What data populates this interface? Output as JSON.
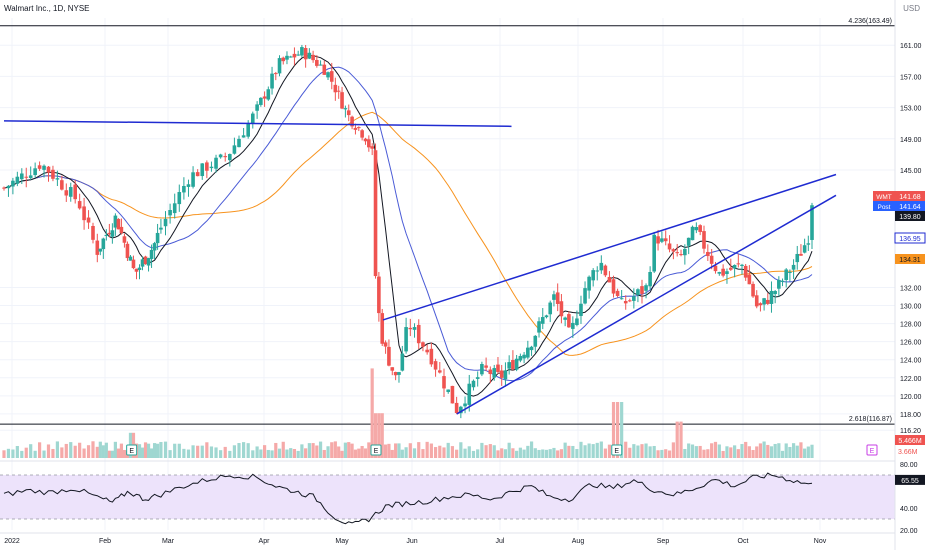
{
  "header": {
    "title": "Walmart Inc., 1D, NYSE",
    "currency": "USD"
  },
  "colors": {
    "up": "#26a69a",
    "down": "#ef5350",
    "trend": "#1f2bd1",
    "ma_fast": "#131722",
    "ma_mid": "#4a5bd6",
    "ma_slow": "#f7931e",
    "rsi_fill": "#ede3fb",
    "rsi_line": "#131722"
  },
  "chart_data": [
    {
      "type": "candlestick",
      "title": "Walmart Inc., 1D, NYSE",
      "price_axis": {
        "ticks": [
          161.0,
          157.0,
          153.0,
          149.0,
          145.0,
          132.0,
          130.0,
          128.0,
          126.0,
          124.0,
          122.0,
          120.0,
          118.0,
          116.2
        ],
        "range": [
          116,
          165
        ]
      },
      "time_axis": {
        "labels": [
          "2022",
          "Feb",
          "Mar",
          "Apr",
          "May",
          "Jun",
          "Jul",
          "Aug",
          "Sep",
          "Oct",
          "Nov"
        ]
      },
      "close_path": [
        {
          "m": 0.0,
          "c": 143.0
        },
        {
          "m": 0.4,
          "c": 145.8
        },
        {
          "m": 0.8,
          "c": 141.5
        },
        {
          "m": 1.0,
          "c": 136.0
        },
        {
          "m": 1.3,
          "c": 139.8
        },
        {
          "m": 1.6,
          "c": 133.5
        },
        {
          "m": 1.9,
          "c": 136.6
        },
        {
          "m": 2.3,
          "c": 144.2
        },
        {
          "m": 2.7,
          "c": 146.8
        },
        {
          "m": 3.0,
          "c": 152.5
        },
        {
          "m": 3.3,
          "c": 158.6
        },
        {
          "m": 3.6,
          "c": 160.2
        },
        {
          "m": 3.9,
          "c": 157.8
        },
        {
          "m": 4.2,
          "c": 152.0
        },
        {
          "m": 4.45,
          "c": 149.3
        },
        {
          "m": 4.55,
          "c": 147.0
        },
        {
          "m": 4.6,
          "c": 131.2
        },
        {
          "m": 4.7,
          "c": 125.8
        },
        {
          "m": 4.9,
          "c": 121.5
        },
        {
          "m": 5.05,
          "c": 128.0
        },
        {
          "m": 5.3,
          "c": 124.5
        },
        {
          "m": 5.6,
          "c": 118.5
        },
        {
          "m": 5.9,
          "c": 123.0
        },
        {
          "m": 6.1,
          "c": 122.0
        },
        {
          "m": 6.5,
          "c": 126.0
        },
        {
          "m": 6.8,
          "c": 131.0
        },
        {
          "m": 7.0,
          "c": 126.5
        },
        {
          "m": 7.15,
          "c": 131.5
        },
        {
          "m": 7.35,
          "c": 135.0
        },
        {
          "m": 7.6,
          "c": 130.0
        },
        {
          "m": 7.9,
          "c": 132.0
        },
        {
          "m": 8.0,
          "c": 137.8
        },
        {
          "m": 8.3,
          "c": 135.0
        },
        {
          "m": 8.5,
          "c": 138.5
        },
        {
          "m": 8.8,
          "c": 133.5
        },
        {
          "m": 9.1,
          "c": 134.5
        },
        {
          "m": 9.3,
          "c": 129.5
        },
        {
          "m": 9.55,
          "c": 132.0
        },
        {
          "m": 9.8,
          "c": 135.0
        },
        {
          "m": 9.95,
          "c": 137.5
        },
        {
          "m": 10.0,
          "c": 141.6
        }
      ],
      "last_price": {
        "symbol": "WMT",
        "value": "141.68"
      },
      "post_market": {
        "label": "Post",
        "value": "141.64"
      },
      "axis_badges": [
        {
          "value": "139.80",
          "kind": "dark"
        },
        {
          "value": "136.95",
          "kind": "blue"
        },
        {
          "value": "134.31",
          "kind": "orange"
        }
      ],
      "fib_levels": [
        {
          "label": "4.236(163.49)",
          "price": 163.49
        },
        {
          "label": "2.618(116.87)",
          "price": 116.87
        }
      ],
      "trend_lines": [
        {
          "name": "horizontal-resistance",
          "points": [
            {
              "m": 0.0,
              "p": 151.3
            },
            {
              "m": 6.25,
              "p": 150.6
            }
          ]
        },
        {
          "name": "wedge-upper",
          "points": [
            {
              "m": 4.7,
              "p": 128.4
            },
            {
              "m": 10.3,
              "p": 144.5
            }
          ]
        },
        {
          "name": "wedge-lower",
          "points": [
            {
              "m": 5.6,
              "p": 118.0
            },
            {
              "m": 10.3,
              "p": 142.2
            }
          ]
        }
      ],
      "earnings_markers": [
        {
          "m": 1.55,
          "label": "E"
        },
        {
          "m": 4.6,
          "label": "E"
        },
        {
          "m": 7.55,
          "label": "E"
        },
        {
          "m": 10.75,
          "label": "E"
        }
      ],
      "volume": {
        "labels": [
          "5.466M",
          "3.66M"
        ]
      }
    },
    {
      "type": "line",
      "title": "",
      "series": [
        {
          "values": [
            52,
            56,
            54,
            58,
            50,
            45,
            55,
            48,
            52,
            60,
            66,
            70,
            68,
            60,
            55,
            50,
            32,
            24,
            30,
            42,
            44,
            46,
            50,
            52,
            48,
            55,
            60,
            50,
            48,
            62,
            58,
            65,
            56,
            52,
            58,
            66,
            60,
            68,
            70,
            65,
            61
          ]
        }
      ],
      "ylim": [
        20,
        80
      ],
      "ticks": [
        "80.00",
        "40.00",
        "20.00"
      ],
      "bands": [
        70,
        30
      ],
      "current": "65.55"
    }
  ]
}
